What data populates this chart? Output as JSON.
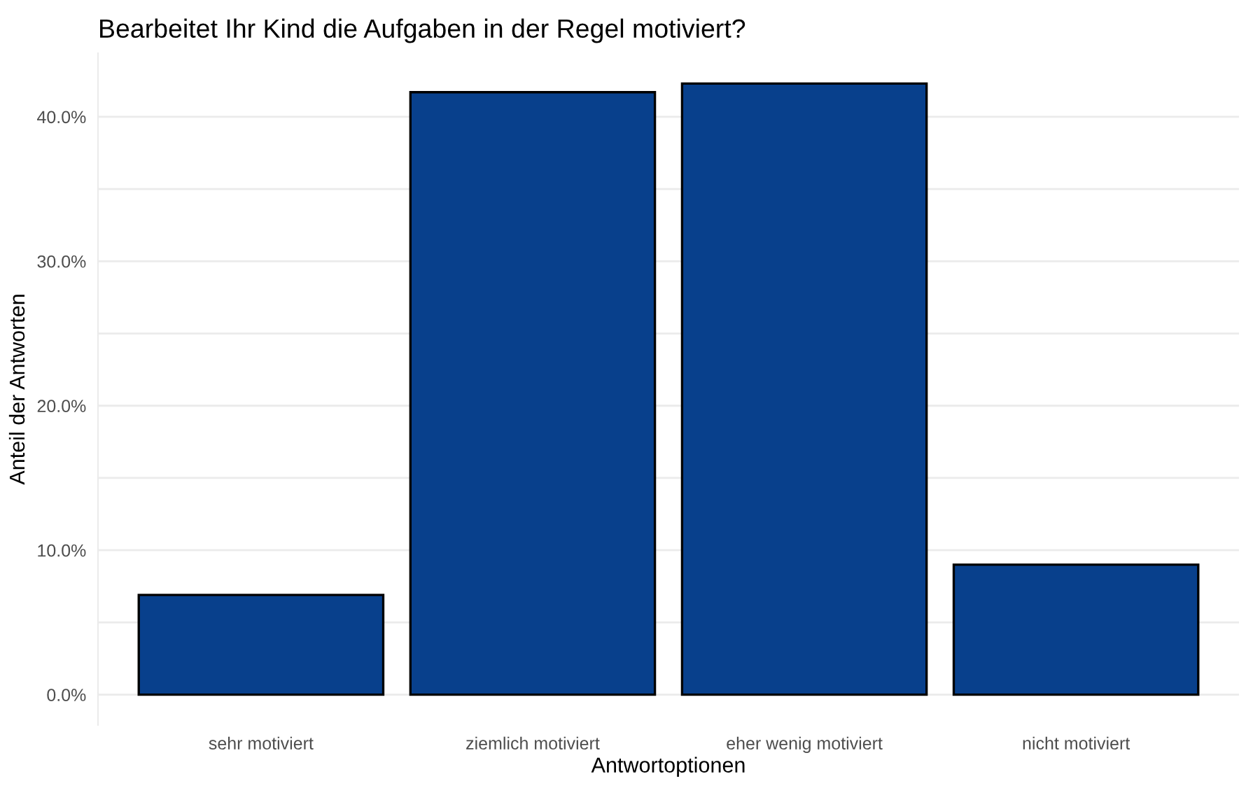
{
  "chart_data": {
    "type": "bar",
    "title": "Bearbeitet Ihr Kind die Aufgaben in der Regel motiviert?",
    "xlabel": "Antwortoptionen",
    "ylabel": "Anteil der Antworten",
    "categories": [
      "sehr motiviert",
      "ziemlich motiviert",
      "eher wenig motiviert",
      "nicht motiviert"
    ],
    "values": [
      6.9,
      41.7,
      42.3,
      9.0
    ],
    "color": "#08408c",
    "ylim": [
      -2.1,
      44.4
    ],
    "yticks": [
      {
        "value": 0,
        "label": "0.0%"
      },
      {
        "value": 5,
        "label": null
      },
      {
        "value": 10,
        "label": "10.0%"
      },
      {
        "value": 15,
        "label": null
      },
      {
        "value": 20,
        "label": "20.0%"
      },
      {
        "value": 25,
        "label": null
      },
      {
        "value": 30,
        "label": "30.0%"
      },
      {
        "value": 35,
        "label": null
      },
      {
        "value": 40,
        "label": "40.0%"
      }
    ],
    "grid": "y"
  }
}
